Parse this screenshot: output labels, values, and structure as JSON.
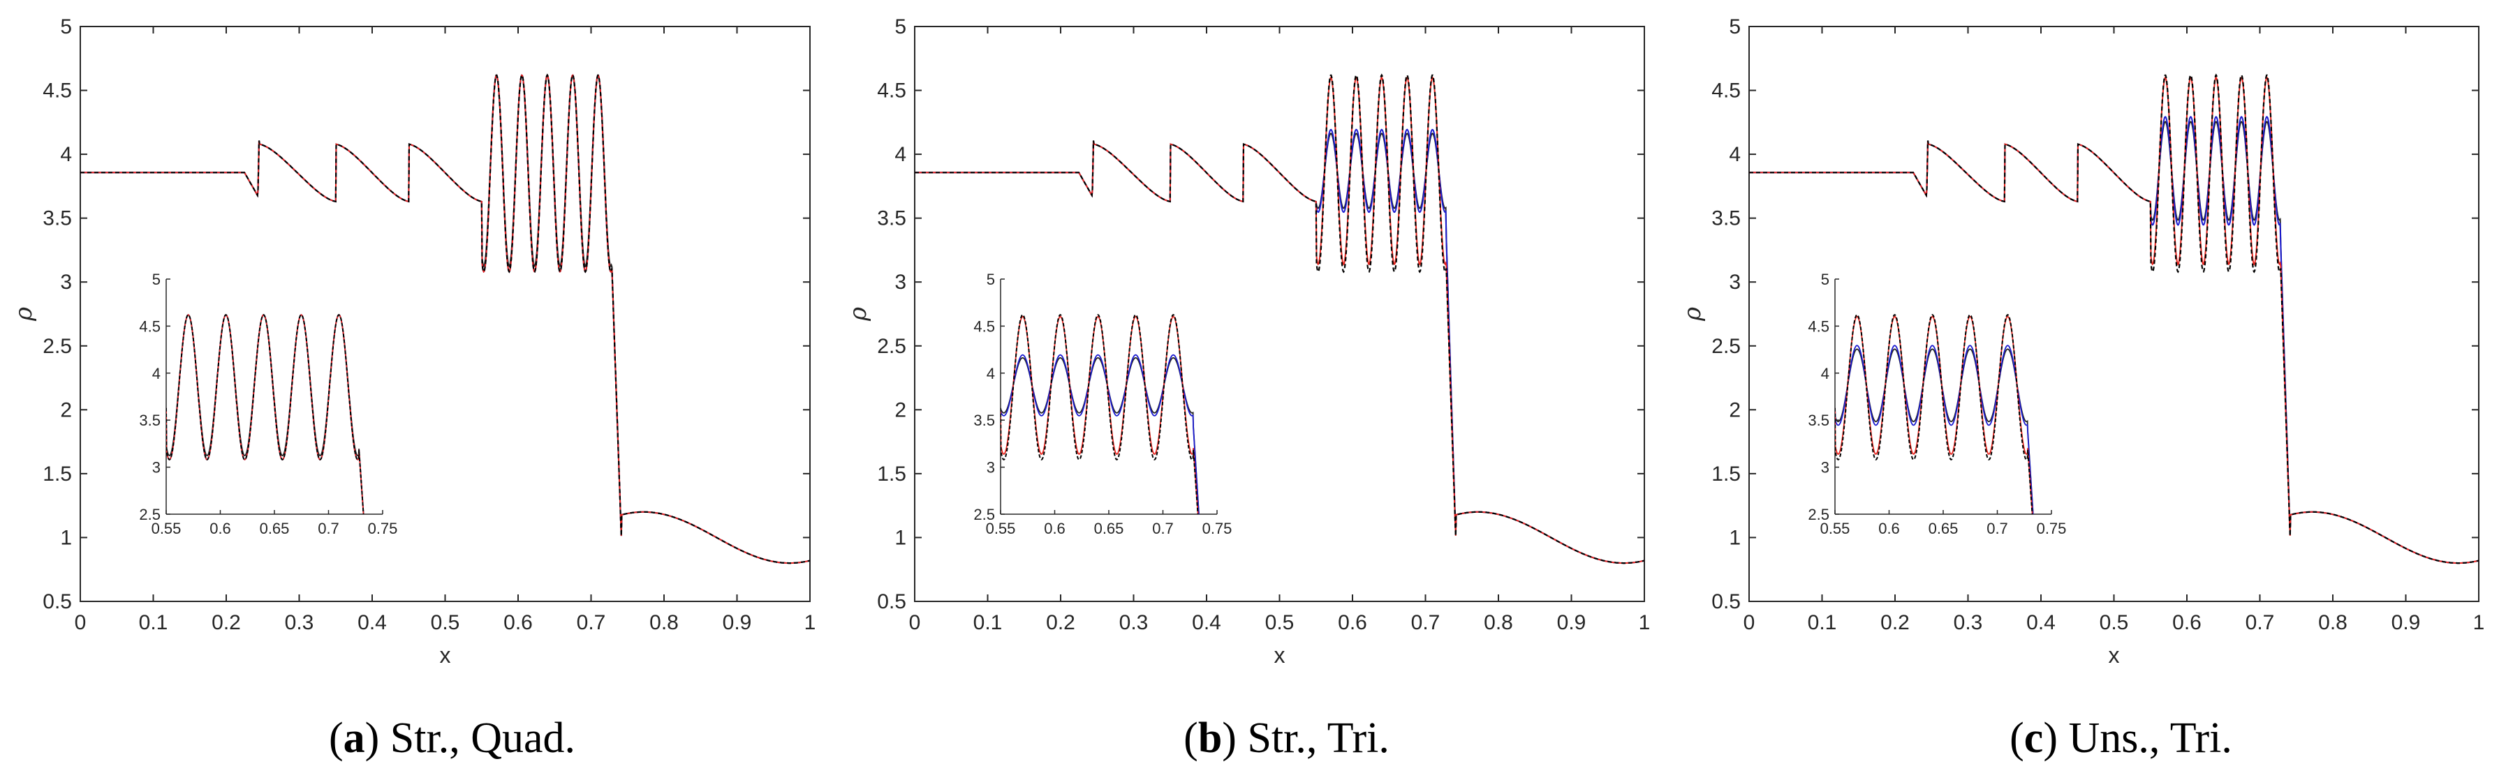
{
  "chart_data": [
    {
      "type": "line",
      "caption_letter": "a",
      "caption_text": "Str., Quad.",
      "xlabel": "x",
      "ylabel": "ρ",
      "xlim": [
        0,
        1
      ],
      "ylim": [
        0.5,
        5
      ],
      "xticks": [
        "0",
        "0.1",
        "0.2",
        "0.3",
        "0.4",
        "0.5",
        "0.6",
        "0.7",
        "0.8",
        "0.9",
        "1"
      ],
      "yticks": [
        "0.5",
        "1",
        "1.5",
        "2",
        "2.5",
        "3",
        "3.5",
        "4",
        "4.5",
        "5"
      ],
      "inset": {
        "xlim": [
          0.55,
          0.75
        ],
        "ylim": [
          2.5,
          5
        ],
        "xticks": [
          "0.55",
          "0.6",
          "0.65",
          "0.7",
          "0.75"
        ],
        "yticks": [
          "2.5",
          "3",
          "3.5",
          "4",
          "4.5",
          "5"
        ]
      },
      "series": [
        {
          "name": "reference",
          "color": "#000000",
          "style": "dashed",
          "amp_factor": 1.0
        },
        {
          "name": "red",
          "color": "#e8231c",
          "style": "solid",
          "amp_factor": 1.0
        },
        {
          "name": "blue",
          "color": "#1a1ad0",
          "style": "solid",
          "amp_factor": 1.0
        },
        {
          "name": "black",
          "color": "#222222",
          "style": "solid",
          "amp_factor": 0.97
        }
      ]
    },
    {
      "type": "line",
      "caption_letter": "b",
      "caption_text": "Str., Tri.",
      "xlabel": "x",
      "ylabel": "ρ",
      "xlim": [
        0,
        1
      ],
      "ylim": [
        0.5,
        5
      ],
      "xticks": [
        "0",
        "0.1",
        "0.2",
        "0.3",
        "0.4",
        "0.5",
        "0.6",
        "0.7",
        "0.8",
        "0.9",
        "1"
      ],
      "yticks": [
        "0.5",
        "1",
        "1.5",
        "2",
        "2.5",
        "3",
        "3.5",
        "4",
        "4.5",
        "5"
      ],
      "inset": {
        "xlim": [
          0.55,
          0.75
        ],
        "ylim": [
          2.5,
          5
        ],
        "xticks": [
          "0.55",
          "0.6",
          "0.65",
          "0.7",
          "0.75"
        ],
        "yticks": [
          "2.5",
          "3",
          "3.5",
          "4",
          "4.5",
          "5"
        ]
      },
      "series": [
        {
          "name": "reference",
          "color": "#000000",
          "style": "dashed",
          "amp_factor": 1.0
        },
        {
          "name": "red",
          "color": "#e8231c",
          "style": "solid",
          "amp_factor": 0.95
        },
        {
          "name": "blue",
          "color": "#1a1ad0",
          "style": "solid",
          "amp_factor": 0.42
        },
        {
          "name": "black",
          "color": "#222222",
          "style": "solid",
          "amp_factor": 0.38
        }
      ]
    },
    {
      "type": "line",
      "caption_letter": "c",
      "caption_text": "Uns., Tri.",
      "xlabel": "x",
      "ylabel": "ρ",
      "xlim": [
        0,
        1
      ],
      "ylim": [
        0.5,
        5
      ],
      "xticks": [
        "0",
        "0.1",
        "0.2",
        "0.3",
        "0.4",
        "0.5",
        "0.6",
        "0.7",
        "0.8",
        "0.9",
        "1"
      ],
      "yticks": [
        "0.5",
        "1",
        "1.5",
        "2",
        "2.5",
        "3",
        "3.5",
        "4",
        "4.5",
        "5"
      ],
      "inset": {
        "xlim": [
          0.55,
          0.75
        ],
        "ylim": [
          2.5,
          5
        ],
        "xticks": [
          "0.55",
          "0.6",
          "0.65",
          "0.7",
          "0.75"
        ],
        "yticks": [
          "2.5",
          "3",
          "3.5",
          "4",
          "4.5",
          "5"
        ]
      },
      "series": [
        {
          "name": "reference",
          "color": "#000000",
          "style": "dashed",
          "amp_factor": 1.0
        },
        {
          "name": "red",
          "color": "#e8231c",
          "style": "solid",
          "amp_factor": 0.95
        },
        {
          "name": "blue",
          "color": "#1a1ad0",
          "style": "solid",
          "amp_factor": 0.55
        },
        {
          "name": "black",
          "color": "#222222",
          "style": "solid",
          "amp_factor": 0.5
        }
      ]
    }
  ]
}
